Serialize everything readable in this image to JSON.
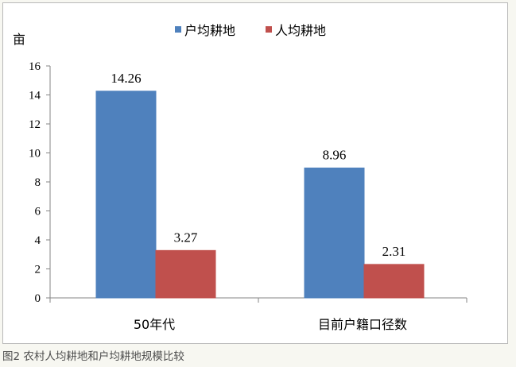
{
  "chart_data": {
    "type": "bar",
    "categories": [
      "50年代",
      "目前户籍口径数"
    ],
    "series": [
      {
        "name": "户均耕地",
        "values": [
          14.26,
          8.96
        ],
        "color": "#4f81bd"
      },
      {
        "name": "人均耕地",
        "values": [
          3.27,
          2.31
        ],
        "color": "#c0504d"
      }
    ],
    "ylabel": "亩",
    "ylim": [
      0,
      16
    ],
    "yticks": [
      0,
      2,
      4,
      6,
      8,
      10,
      12,
      14,
      16
    ],
    "data_labels": [
      "14.26",
      "3.27",
      "8.96",
      "2.31"
    ],
    "grid": false,
    "legend_position": "top-center"
  },
  "caption": "图2 农村人均耕地和户均耕地规模比较"
}
